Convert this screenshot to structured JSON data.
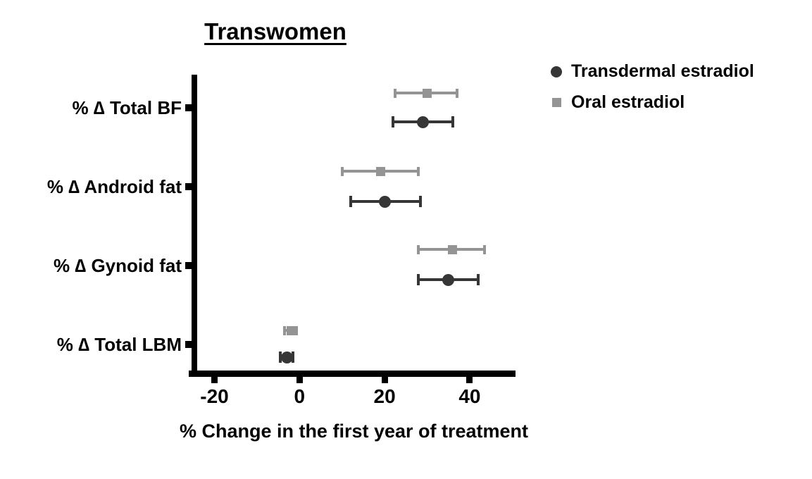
{
  "chart_data": {
    "type": "scatter",
    "subtype": "dot-with-error-bars-forest-plot",
    "title": "Transwomen",
    "xlabel": "% Change in the first year of treatment",
    "ylabel": "",
    "categories": [
      "% ∆ Total BF",
      "% ∆ Android fat",
      "% ∆ Gynoid fat",
      "% ∆ Total LBM"
    ],
    "xticks": [
      -20,
      0,
      20,
      40
    ],
    "xlim": [
      -24.5,
      50.5
    ],
    "grid": false,
    "legend_position": "top-right",
    "series": [
      {
        "name": "Transdermal estradiol",
        "marker": "circle",
        "color": "#363636",
        "points": [
          {
            "category": "% ∆ Total BF",
            "value": 29,
            "low": 22,
            "high": 36
          },
          {
            "category": "% ∆ Android fat",
            "value": 20,
            "low": 12,
            "high": 28.5
          },
          {
            "category": "% ∆ Gynoid fat",
            "value": 35,
            "low": 28,
            "high": 42
          },
          {
            "category": "% ∆ Total LBM",
            "value": -3,
            "low": -4.6,
            "high": -1.6
          }
        ]
      },
      {
        "name": "Oral estradiol",
        "marker": "square",
        "color": "#949494",
        "points": [
          {
            "category": "% ∆ Total BF",
            "value": 30,
            "low": 22.5,
            "high": 37
          },
          {
            "category": "% ∆ Android fat",
            "value": 19,
            "low": 10,
            "high": 28
          },
          {
            "category": "% ∆ Gynoid fat",
            "value": 36,
            "low": 28,
            "high": 43.5
          },
          {
            "category": "% ∆ Total LBM",
            "value": -2,
            "low": -3.5,
            "high": -0.7
          }
        ]
      }
    ],
    "axis_color": "#000000",
    "text_color": "#000000"
  }
}
